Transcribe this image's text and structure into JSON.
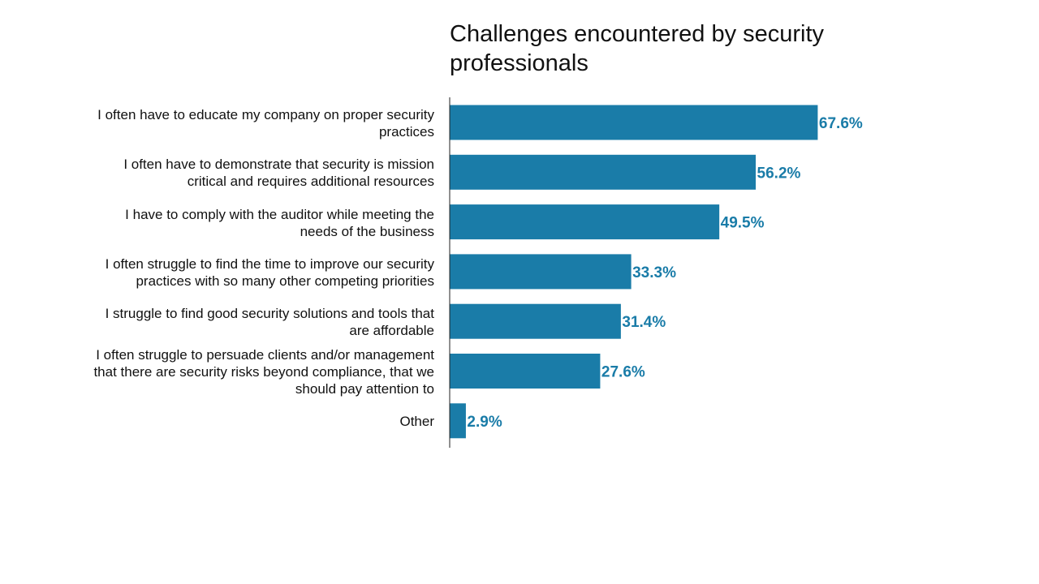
{
  "chart_data": {
    "type": "bar",
    "orientation": "horizontal",
    "title": "Challenges encountered by security professionals",
    "categories": [
      "I often have to educate my company on proper security practices",
      "I often have to demonstrate that security is mission critical and requires additional resources",
      "I have to comply with the auditor while meeting the needs of the business",
      "I often struggle to find the time to improve our security practices with so many other competing priorities",
      "I struggle to find good security solutions and tools that are affordable",
      "I often struggle to persuade clients and/or management that there are security risks beyond compliance, that we should pay attention to",
      "Other"
    ],
    "values": [
      67.6,
      56.2,
      49.5,
      33.3,
      31.4,
      27.6,
      2.9
    ],
    "value_labels": [
      "67.6%",
      "56.2%",
      "49.5%",
      "33.3%",
      "31.4%",
      "27.6%",
      "2.9%"
    ],
    "xlim": [
      0,
      100
    ],
    "grid": false,
    "legend": "none",
    "colors": {
      "bar": "#1a7ca8",
      "value_label": "#1a7ca8",
      "axis": "#222222"
    }
  }
}
